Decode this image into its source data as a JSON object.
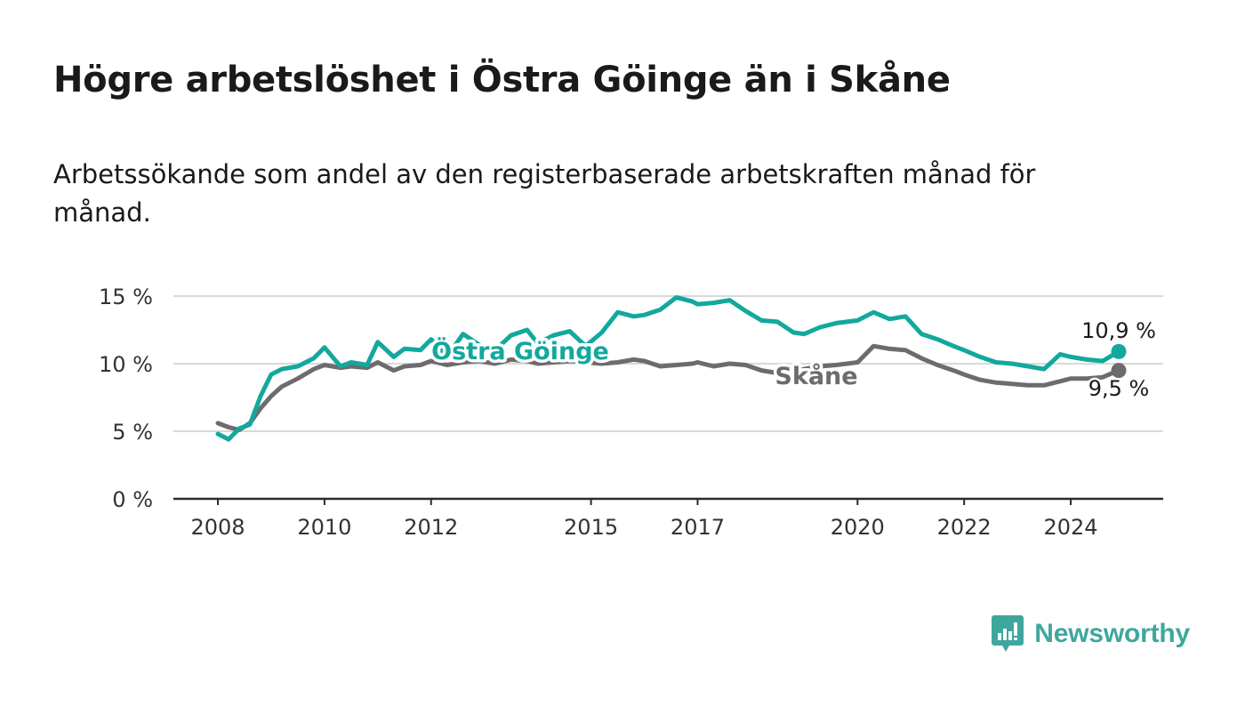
{
  "header": {
    "title": "Högre arbetslöshet i Östra Göinge än i Skåne",
    "subtitle": "Arbetssökande som andel av den registerbaserade arbetskraften månad för månad."
  },
  "brand": {
    "name": "Newsworthy",
    "icon": "newsworthy-logo-icon",
    "color": "#3ea79d"
  },
  "colors": {
    "ostra_goinge": "#13a89e",
    "skane": "#6d6b6e",
    "grid": "#d9d9d9",
    "axis": "#2b2b2b"
  },
  "chart_data": {
    "type": "line",
    "title": "Högre arbetslöshet i Östra Göinge än i Skåne",
    "subtitle": "Arbetssökande som andel av den registerbaserade arbetskraften månad för månad.",
    "xlabel": "",
    "ylabel": "",
    "xlim": [
      2008.0,
      2024.9
    ],
    "ylim": [
      0,
      15
    ],
    "x_ticks": [
      2008,
      2010,
      2012,
      2015,
      2017,
      2020,
      2022,
      2024
    ],
    "x_tick_labels": [
      "2008",
      "2010",
      "2012",
      "2015",
      "2017",
      "2020",
      "2022",
      "2024"
    ],
    "y_ticks": [
      0,
      5,
      10,
      15
    ],
    "y_tick_labels": [
      "0 %",
      "5 %",
      "10 %",
      "15 %"
    ],
    "grid": "horizontal",
    "legend": "direct labels on lines",
    "series": [
      {
        "name": "Östra Göinge",
        "color": "#13a89e",
        "end_label": "10,9 %",
        "x": [
          2008.0,
          2008.2,
          2008.4,
          2008.6,
          2008.8,
          2009.0,
          2009.2,
          2009.5,
          2009.8,
          2010.0,
          2010.3,
          2010.5,
          2010.8,
          2011.0,
          2011.3,
          2011.5,
          2011.8,
          2012.0,
          2012.3,
          2012.6,
          2012.9,
          2013.2,
          2013.5,
          2013.8,
          2014.0,
          2014.3,
          2014.6,
          2014.9,
          2015.2,
          2015.5,
          2015.8,
          2016.0,
          2016.3,
          2016.6,
          2016.9,
          2017.0,
          2017.3,
          2017.6,
          2017.9,
          2018.2,
          2018.5,
          2018.8,
          2019.0,
          2019.3,
          2019.6,
          2020.0,
          2020.3,
          2020.6,
          2020.9,
          2021.2,
          2021.5,
          2021.8,
          2022.0,
          2022.3,
          2022.6,
          2022.9,
          2023.2,
          2023.5,
          2023.8,
          2024.0,
          2024.3,
          2024.6,
          2024.9
        ],
        "y": [
          4.8,
          4.4,
          5.2,
          5.5,
          7.6,
          9.2,
          9.6,
          9.8,
          10.4,
          11.2,
          9.8,
          10.1,
          9.9,
          11.6,
          10.5,
          11.1,
          11.0,
          11.8,
          10.5,
          12.2,
          11.4,
          11.0,
          12.1,
          12.5,
          11.5,
          12.1,
          12.4,
          11.3,
          12.3,
          13.8,
          13.5,
          13.6,
          14.0,
          14.9,
          14.6,
          14.4,
          14.5,
          14.7,
          13.9,
          13.2,
          13.1,
          12.3,
          12.2,
          12.7,
          13.0,
          13.2,
          13.8,
          13.3,
          13.5,
          12.2,
          11.8,
          11.3,
          11.0,
          10.5,
          10.1,
          10.0,
          9.8,
          9.6,
          10.7,
          10.5,
          10.3,
          10.2,
          10.9
        ]
      },
      {
        "name": "Skåne",
        "color": "#6d6b6e",
        "end_label": "9,5 %",
        "x": [
          2008.0,
          2008.2,
          2008.4,
          2008.6,
          2008.8,
          2009.0,
          2009.2,
          2009.5,
          2009.8,
          2010.0,
          2010.3,
          2010.5,
          2010.8,
          2011.0,
          2011.3,
          2011.5,
          2011.8,
          2012.0,
          2012.3,
          2012.6,
          2012.9,
          2013.2,
          2013.5,
          2013.8,
          2014.0,
          2014.3,
          2014.6,
          2014.9,
          2015.2,
          2015.5,
          2015.8,
          2016.0,
          2016.3,
          2016.6,
          2016.9,
          2017.0,
          2017.3,
          2017.6,
          2017.9,
          2018.2,
          2018.5,
          2018.8,
          2019.0,
          2019.3,
          2019.6,
          2020.0,
          2020.3,
          2020.6,
          2020.9,
          2021.2,
          2021.5,
          2021.8,
          2022.0,
          2022.3,
          2022.6,
          2022.9,
          2023.2,
          2023.5,
          2023.8,
          2024.0,
          2024.3,
          2024.6,
          2024.9
        ],
        "y": [
          5.6,
          5.3,
          5.1,
          5.6,
          6.7,
          7.6,
          8.3,
          8.9,
          9.6,
          9.9,
          9.7,
          9.8,
          9.7,
          10.1,
          9.5,
          9.8,
          9.9,
          10.2,
          9.9,
          10.1,
          10.2,
          10.0,
          10.3,
          10.2,
          10.0,
          10.1,
          10.2,
          10.1,
          10.0,
          10.1,
          10.3,
          10.2,
          9.8,
          9.9,
          10.0,
          10.1,
          9.8,
          10.0,
          9.9,
          9.5,
          9.3,
          9.4,
          9.6,
          9.8,
          9.9,
          10.1,
          11.3,
          11.1,
          11.0,
          10.4,
          9.9,
          9.5,
          9.2,
          8.8,
          8.6,
          8.5,
          8.4,
          8.4,
          8.7,
          8.9,
          8.9,
          9.0,
          9.5
        ]
      }
    ]
  }
}
